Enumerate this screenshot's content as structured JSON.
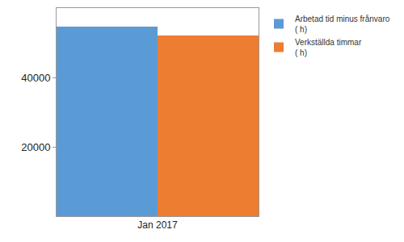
{
  "chart_data": {
    "type": "bar",
    "categories": [
      "Jan 2017"
    ],
    "series": [
      {
        "name": "Arbetad tid minus frånvaro\n( h)",
        "color": "#5b9bd5",
        "values": [
          54700
        ]
      },
      {
        "name": "Verkställda timmar\n( h)",
        "color": "#ed7d31",
        "values": [
          52000
        ]
      }
    ],
    "ylim": [
      0,
      60000
    ],
    "yticks": [
      20000,
      40000
    ],
    "grid": false,
    "legend": "top right"
  }
}
